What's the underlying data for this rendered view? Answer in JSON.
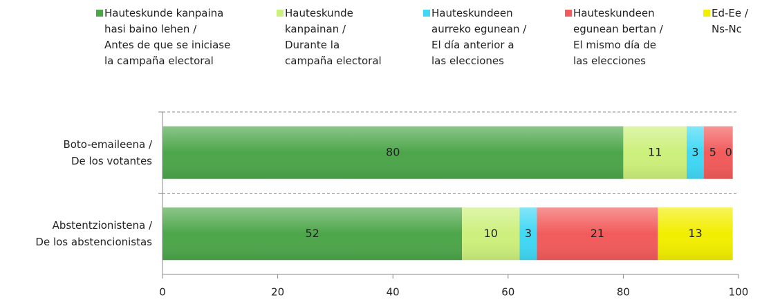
{
  "chart_data": {
    "type": "stacked-barh",
    "categories": [
      "Boto-emaileena /\nDe los votantes",
      "Abstentzionistena /\nDe los abstencionistas"
    ],
    "series": [
      {
        "name": "Hauteskunde kanpaina\nhasi baino lehen /\nAntes de que se iniciase\nla campaña electoral",
        "color": "#4da64a",
        "values": [
          80,
          52
        ]
      },
      {
        "name": "Hauteskunde\nkanpainan /\nDurante la\ncampaña electoral",
        "color": "#ccf07c",
        "values": [
          11,
          10
        ]
      },
      {
        "name": "Hauteskundeen\naurreko egunean /\nEl día anterior a\nlas elecciones",
        "color": "#40d8f5",
        "values": [
          3,
          3
        ]
      },
      {
        "name": "Hauteskundeen\negunean bertan /\nEl mismo día de\nlas elecciones",
        "color": "#f25b5b",
        "values": [
          5,
          21
        ]
      },
      {
        "name": "Ed-Ee /\nNs-Nc",
        "color": "#f2ee00",
        "values": [
          0,
          13
        ]
      }
    ],
    "xlim": [
      0,
      100
    ],
    "xticks": [
      0,
      20,
      40,
      60,
      80,
      100
    ],
    "grid": false
  }
}
